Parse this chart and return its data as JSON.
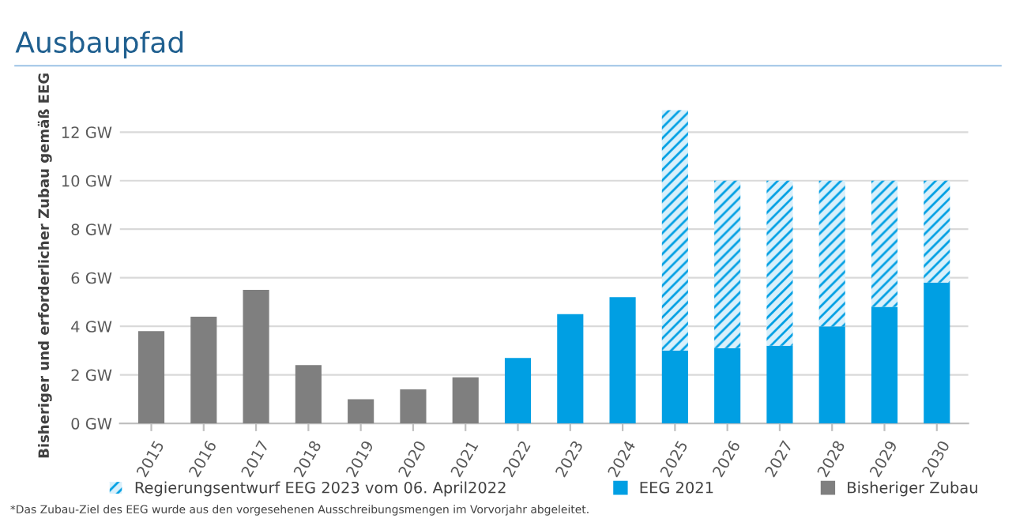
{
  "chart_data": {
    "type": "bar",
    "title": "Ausbaupfad",
    "ylabel": "Bisheriger und erforderlicher Zubau gemäß EEG",
    "categories": [
      "2015",
      "2016",
      "2017",
      "2018",
      "2019",
      "2020",
      "2021",
      "2022",
      "2023",
      "2024",
      "2025",
      "2026",
      "2027",
      "2028",
      "2029",
      "2030"
    ],
    "stacked": true,
    "series": [
      {
        "name": "Bisheriger Zubau",
        "color": "#7f7f7f",
        "values": [
          3.8,
          4.4,
          5.5,
          2.4,
          1.0,
          1.4,
          1.9,
          null,
          null,
          null,
          null,
          null,
          null,
          null,
          null,
          null
        ]
      },
      {
        "name": "EEG 2021",
        "color": "#009fe3",
        "values": [
          null,
          null,
          null,
          null,
          null,
          null,
          null,
          2.7,
          4.5,
          5.2,
          3.0,
          3.1,
          3.2,
          4.0,
          4.8,
          5.8
        ]
      },
      {
        "name": "Regierungsentwurf EEG 2023 vom 06. April2022",
        "color": "#009fe3",
        "values": [
          null,
          null,
          null,
          null,
          null,
          null,
          null,
          null,
          null,
          null,
          9.9,
          6.9,
          6.8,
          6.0,
          5.2,
          4.2
        ]
      }
    ],
    "ylim": [
      0,
      13
    ],
    "yticks": [
      {
        "value": 0,
        "label": "0 GW"
      },
      {
        "value": 2,
        "label": "2 GW"
      },
      {
        "value": 4,
        "label": "4 GW"
      },
      {
        "value": 6,
        "label": "6 GW"
      },
      {
        "value": 8,
        "label": "8 GW"
      },
      {
        "value": 10,
        "label": "10 GW"
      },
      {
        "value": 12,
        "label": "12 GW"
      }
    ],
    "grid": "y",
    "legend": "bottom",
    "annotations": [
      "*Das Zubau-Ziel des EEG wurde aus den vorgesehenen Ausschreibungsmengen im Vorvorjahr abgeleitet."
    ]
  }
}
